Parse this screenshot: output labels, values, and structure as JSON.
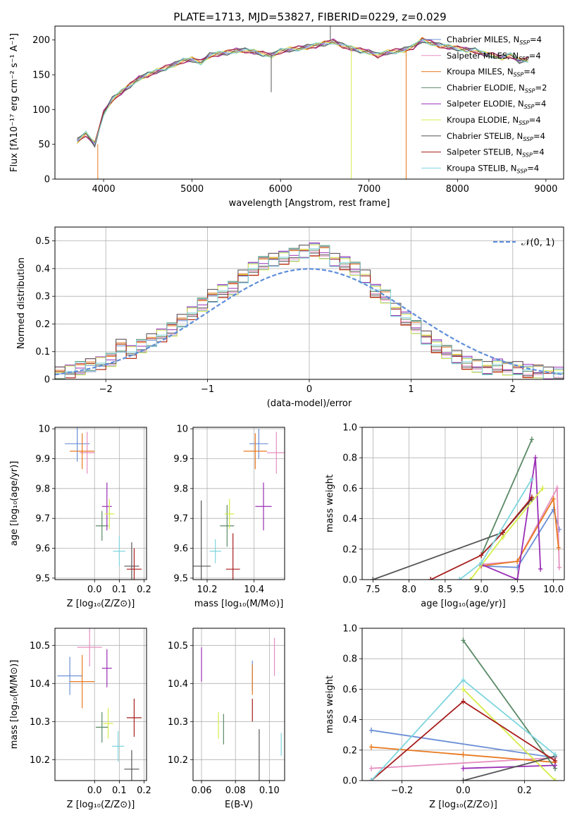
{
  "figure_title": "PLATE=1713, MJD=53827, FIBERID=0229, z=0.029",
  "colors": {
    "Chabrier MILES": "#6b8fd6",
    "Salpeter MILES": "#e68fc0",
    "Kroupa MILES": "#e8791f",
    "Chabrier ELODIE": "#5a8a66",
    "Salpeter ELODIE": "#9a2fb5",
    "Kroupa ELODIE": "#d6ec48",
    "Chabrier STELIB": "#555555",
    "Salpeter STELIB": "#a61d1d",
    "Kroupa STELIB": "#7fd6de",
    "normal_curve": "#5f8ed9"
  },
  "legend_spectrum": [
    {
      "model": "Chabrier MILES",
      "n": "4"
    },
    {
      "model": "Salpeter MILES",
      "n": "4"
    },
    {
      "model": "Kroupa MILES",
      "n": "4"
    },
    {
      "model": "Chabrier ELODIE",
      "n": "2"
    },
    {
      "model": "Salpeter ELODIE",
      "n": "4"
    },
    {
      "model": "Kroupa ELODIE",
      "n": "4"
    },
    {
      "model": "Chabrier STELIB",
      "n": "4"
    },
    {
      "model": "Salpeter STELIB",
      "n": "4"
    },
    {
      "model": "Kroupa STELIB",
      "n": "4"
    }
  ],
  "legend_label_prefix": "N",
  "legend_label_sub": "SSP",
  "chart_data": [
    {
      "id": "spectrum",
      "type": "line",
      "xlabel": "wavelength [Angstrom, rest frame]",
      "ylabel": "Flux [fλ10⁻¹⁷ erg cm⁻² s⁻¹ A⁻¹]",
      "xlim": [
        3450,
        9200
      ],
      "ylim": [
        0,
        220
      ],
      "xticks": [
        4000,
        5000,
        6000,
        7000,
        8000,
        9000
      ],
      "yticks": [
        0,
        50,
        100,
        150,
        200
      ],
      "grid": false,
      "x": [
        3700,
        3800,
        3900,
        4000,
        4100,
        4200,
        4300,
        4400,
        4500,
        4600,
        4700,
        4800,
        4900,
        5000,
        5100,
        5200,
        5300,
        5400,
        5500,
        5600,
        5700,
        5800,
        5900,
        6000,
        6100,
        6200,
        6300,
        6400,
        6500,
        6600,
        6700,
        6800,
        6900,
        7000,
        7100,
        7200,
        7300,
        7400,
        7500,
        7600,
        7700,
        7800,
        7900,
        8000,
        8100,
        8200,
        8300,
        8400,
        8500,
        8600,
        8700,
        8800
      ],
      "y": [
        55,
        65,
        50,
        95,
        115,
        125,
        135,
        145,
        150,
        155,
        160,
        165,
        170,
        172,
        168,
        178,
        180,
        182,
        185,
        185,
        183,
        180,
        178,
        184,
        186,
        188,
        190,
        192,
        195,
        198,
        192,
        188,
        185,
        183,
        178,
        182,
        184,
        186,
        190,
        200,
        196,
        192,
        190,
        188,
        186,
        185,
        180,
        178,
        175,
        178,
        170,
        172
      ],
      "spectrum_features": [
        {
          "x": 3934,
          "y": 0,
          "series": "Kroupa MILES"
        },
        {
          "x": 5895,
          "y": 125,
          "series": "Chabrier STELIB"
        },
        {
          "x": 6563,
          "y": 220,
          "series": "Chabrier STELIB"
        },
        {
          "x": 6800,
          "y": 0,
          "series": "Kroupa ELODIE"
        },
        {
          "x": 7420,
          "y": 0,
          "series": "Kroupa MILES"
        }
      ]
    },
    {
      "id": "residuals",
      "type": "histogram",
      "xlabel": "(data-model)/error",
      "ylabel": "Normed distribution",
      "xlim": [
        -2.5,
        2.5
      ],
      "ylim": [
        0,
        0.55
      ],
      "xticks": [
        -2,
        -1,
        0,
        1,
        2
      ],
      "yticks": [
        0,
        0.1,
        0.2,
        0.3,
        0.4,
        0.5
      ],
      "grid": true,
      "bin_edges": [
        -2.5,
        -2.4,
        -2.3,
        -2.2,
        -2.1,
        -2.0,
        -1.9,
        -1.8,
        -1.7,
        -1.6,
        -1.5,
        -1.4,
        -1.3,
        -1.2,
        -1.1,
        -1.0,
        -0.9,
        -0.8,
        -0.7,
        -0.6,
        -0.5,
        -0.4,
        -0.3,
        -0.2,
        -0.1,
        0.0,
        0.1,
        0.2,
        0.3,
        0.4,
        0.5,
        0.6,
        0.7,
        0.8,
        0.9,
        1.0,
        1.1,
        1.2,
        1.3,
        1.4,
        1.5,
        1.6,
        1.7,
        1.8,
        1.9,
        2.0,
        2.1,
        2.2,
        2.3,
        2.4,
        2.5
      ],
      "heights": [
        0.02,
        0.03,
        0.04,
        0.05,
        0.06,
        0.07,
        0.12,
        0.1,
        0.12,
        0.14,
        0.16,
        0.18,
        0.21,
        0.24,
        0.27,
        0.3,
        0.32,
        0.33,
        0.37,
        0.4,
        0.42,
        0.43,
        0.44,
        0.45,
        0.46,
        0.47,
        0.46,
        0.43,
        0.42,
        0.4,
        0.37,
        0.32,
        0.3,
        0.25,
        0.22,
        0.19,
        0.15,
        0.12,
        0.1,
        0.08,
        0.06,
        0.05,
        0.04,
        0.05,
        0.04,
        0.04,
        0.03,
        0.03,
        0.02,
        0.02
      ],
      "legend": "𝒩(0, 1)",
      "normal_curve": {
        "mu": 0,
        "sigma": 1,
        "style": "dashed"
      }
    },
    {
      "id": "age_vs_Z",
      "type": "errorbar",
      "xlabel": "Z [log₁₀(Z/Z⊙)]",
      "ylabel": "age  [log₁₀(age/yr)]",
      "xlim": [
        -0.16,
        0.21
      ],
      "ylim": [
        9.495,
        10.005
      ],
      "xticks": [
        0.0,
        0.1,
        0.2
      ],
      "xticklabels": [
        "0.0",
        "0.1",
        "0.2"
      ],
      "yticks": [
        9.5,
        9.6,
        9.7,
        9.8,
        9.9,
        10.0
      ],
      "grid": true,
      "points": [
        {
          "series": "Chabrier MILES",
          "x": -0.07,
          "y": 9.95,
          "xerr": 0.05,
          "yerr": 0.06
        },
        {
          "series": "Salpeter MILES",
          "x": -0.03,
          "y": 9.92,
          "xerr": 0.03,
          "yerr": 0.07
        },
        {
          "series": "Kroupa MILES",
          "x": -0.05,
          "y": 9.925,
          "xerr": 0.05,
          "yerr": 0.06
        },
        {
          "series": "Chabrier ELODIE",
          "x": 0.03,
          "y": 9.675,
          "xerr": 0.025,
          "yerr": 0.05
        },
        {
          "series": "Salpeter ELODIE",
          "x": 0.05,
          "y": 9.74,
          "xerr": 0.02,
          "yerr": 0.08
        },
        {
          "series": "Kroupa ELODIE",
          "x": 0.06,
          "y": 9.715,
          "xerr": 0.02,
          "yerr": 0.05
        },
        {
          "series": "Chabrier STELIB",
          "x": 0.15,
          "y": 9.54,
          "xerr": 0.03,
          "yerr": 0.08
        },
        {
          "series": "Salpeter STELIB",
          "x": 0.16,
          "y": 9.53,
          "xerr": 0.03,
          "yerr": 0.07
        },
        {
          "series": "Kroupa STELIB",
          "x": 0.1,
          "y": 9.59,
          "xerr": 0.025,
          "yerr": 0.05
        }
      ]
    },
    {
      "id": "age_vs_mass",
      "type": "errorbar",
      "xlabel": "mass [log₁₀(M/M⊙)]",
      "ylabel": "",
      "xlim": [
        10.14,
        10.53
      ],
      "ylim": [
        9.495,
        10.005
      ],
      "xticks": [
        10.2,
        10.4
      ],
      "xticklabels": [
        "10.2",
        "10.4"
      ],
      "yticks": [
        9.5,
        9.6,
        9.7,
        9.8,
        9.9,
        10.0
      ],
      "grid": true,
      "points": [
        {
          "series": "Chabrier MILES",
          "x": 10.42,
          "y": 9.95,
          "xerr": 0.04,
          "yerr": 0.05
        },
        {
          "series": "Salpeter MILES",
          "x": 10.495,
          "y": 9.92,
          "xerr": 0.04,
          "yerr": 0.07
        },
        {
          "series": "Kroupa MILES",
          "x": 10.405,
          "y": 9.925,
          "xerr": 0.05,
          "yerr": 0.06
        },
        {
          "series": "Chabrier ELODIE",
          "x": 10.285,
          "y": 9.675,
          "xerr": 0.03,
          "yerr": 0.07
        },
        {
          "series": "Salpeter ELODIE",
          "x": 10.44,
          "y": 9.74,
          "xerr": 0.035,
          "yerr": 0.08
        },
        {
          "series": "Kroupa ELODIE",
          "x": 10.295,
          "y": 9.715,
          "xerr": 0.02,
          "yerr": 0.05
        },
        {
          "series": "Chabrier STELIB",
          "x": 10.175,
          "y": 9.54,
          "xerr": 0.04,
          "yerr": 0.22
        },
        {
          "series": "Salpeter STELIB",
          "x": 10.31,
          "y": 9.53,
          "xerr": 0.03,
          "yerr": 0.12
        },
        {
          "series": "Kroupa STELIB",
          "x": 10.235,
          "y": 9.59,
          "xerr": 0.025,
          "yerr": 0.04
        }
      ]
    },
    {
      "id": "weight_vs_age",
      "type": "line",
      "xlabel": "age  [log₁₀(age/yr)]",
      "ylabel": "mass weight",
      "xlim": [
        7.35,
        10.15
      ],
      "ylim": [
        0,
        1.0
      ],
      "xticks": [
        7.5,
        8.0,
        8.5,
        9.0,
        9.5,
        10.0
      ],
      "xticklabels": [
        "7.5",
        "8.0",
        "8.5",
        "9.0",
        "9.5",
        "10.0"
      ],
      "yticks": [
        0,
        0.2,
        0.4,
        0.6,
        0.8,
        1.0
      ],
      "yticklabels": [
        "0.0",
        "0.2",
        "0.4",
        "0.6",
        "0.8",
        "1.0"
      ],
      "grid": true,
      "series": [
        {
          "color_key": "Chabrier MILES",
          "points": [
            [
              9.0,
              0.09
            ],
            [
              9.5,
              0.08
            ],
            [
              10.0,
              0.46
            ],
            [
              10.08,
              0.33
            ]
          ]
        },
        {
          "color_key": "Salpeter MILES",
          "points": [
            [
              9.0,
              0.1
            ],
            [
              9.5,
              0.12
            ],
            [
              10.05,
              0.6
            ],
            [
              10.08,
              0.08
            ]
          ]
        },
        {
          "color_key": "Kroupa MILES",
          "points": [
            [
              9.0,
              0.09
            ],
            [
              9.5,
              0.12
            ],
            [
              10.0,
              0.53
            ],
            [
              10.07,
              0.21
            ]
          ]
        },
        {
          "color_key": "Chabrier ELODIE",
          "points": [
            [
              9.0,
              0.16
            ],
            [
              9.7,
              0.92
            ]
          ]
        },
        {
          "color_key": "Salpeter ELODIE",
          "points": [
            [
              9.0,
              0.1
            ],
            [
              9.5,
              0.0
            ],
            [
              9.75,
              0.8
            ],
            [
              9.82,
              0.07
            ]
          ]
        },
        {
          "color_key": "Kroupa ELODIE",
          "points": [
            [
              8.85,
              0.0
            ],
            [
              9.3,
              0.28
            ],
            [
              9.85,
              0.6
            ]
          ]
        },
        {
          "color_key": "Chabrier STELIB",
          "points": [
            [
              7.5,
              0.0
            ],
            [
              9.3,
              0.31
            ],
            [
              9.7,
              0.53
            ]
          ]
        },
        {
          "color_key": "Salpeter STELIB",
          "points": [
            [
              8.3,
              0.0
            ],
            [
              9.0,
              0.16
            ],
            [
              9.3,
              0.31
            ],
            [
              9.7,
              0.54
            ]
          ]
        },
        {
          "color_key": "Kroupa STELIB",
          "points": [
            [
              8.7,
              0.0
            ],
            [
              9.0,
              0.11
            ],
            [
              9.7,
              0.66
            ]
          ]
        }
      ]
    },
    {
      "id": "mass_vs_Z",
      "type": "errorbar",
      "xlabel": "Z [log₁₀(Z/Z⊙)]",
      "ylabel": "mass [log₁₀(M/M⊙)]",
      "xlim": [
        -0.16,
        0.21
      ],
      "ylim": [
        10.145,
        10.545
      ],
      "xticks": [
        0.0,
        0.1,
        0.2
      ],
      "xticklabels": [
        "0.0",
        "0.1",
        "0.2"
      ],
      "yticks": [
        10.2,
        10.3,
        10.4,
        10.5
      ],
      "yticklabels": [
        "10.2",
        "10.3",
        "10.4",
        "10.5"
      ],
      "grid": true,
      "points": [
        {
          "series": "Chabrier MILES",
          "x": -0.1,
          "y": 10.42,
          "xerr": 0.05,
          "yerr": 0.05
        },
        {
          "series": "Salpeter MILES",
          "x": -0.02,
          "y": 10.495,
          "xerr": 0.05,
          "yerr": 0.05
        },
        {
          "series": "Kroupa MILES",
          "x": -0.05,
          "y": 10.405,
          "xerr": 0.05,
          "yerr": 0.07
        },
        {
          "series": "Chabrier ELODIE",
          "x": 0.03,
          "y": 10.285,
          "xerr": 0.025,
          "yerr": 0.04
        },
        {
          "series": "Salpeter ELODIE",
          "x": 0.05,
          "y": 10.44,
          "xerr": 0.02,
          "yerr": 0.05
        },
        {
          "series": "Kroupa ELODIE",
          "x": 0.055,
          "y": 10.295,
          "xerr": 0.02,
          "yerr": 0.04
        },
        {
          "series": "Chabrier STELIB",
          "x": 0.15,
          "y": 10.175,
          "xerr": 0.03,
          "yerr": 0.05
        },
        {
          "series": "Salpeter STELIB",
          "x": 0.16,
          "y": 10.31,
          "xerr": 0.03,
          "yerr": 0.05
        },
        {
          "series": "Kroupa STELIB",
          "x": 0.095,
          "y": 10.235,
          "xerr": 0.025,
          "yerr": 0.04
        }
      ]
    },
    {
      "id": "mass_vs_ebv",
      "type": "errorbar",
      "xlabel": "E(B-V)",
      "ylabel": "",
      "xlim": [
        0.055,
        0.109
      ],
      "ylim": [
        10.145,
        10.545
      ],
      "xticks": [
        0.06,
        0.08,
        0.1
      ],
      "xticklabels": [
        "0.06",
        "0.08",
        "0.10"
      ],
      "yticks": [
        10.2,
        10.3,
        10.4,
        10.5
      ],
      "yticklabels": [
        "10.2",
        "10.3",
        "10.4",
        "10.5"
      ],
      "grid": true,
      "points": [
        {
          "series": "Salpeter ELODIE",
          "x": 0.06,
          "y": 10.45,
          "xerr": 0,
          "yerr": 0.045
        },
        {
          "series": "Kroupa ELODIE",
          "x": 0.07,
          "y": 10.29,
          "xerr": 0,
          "yerr": 0.035
        },
        {
          "series": "Chabrier ELODIE",
          "x": 0.073,
          "y": 10.28,
          "xerr": 0,
          "yerr": 0.04
        },
        {
          "series": "Chabrier MILES",
          "x": 0.09,
          "y": 10.42,
          "xerr": 0,
          "yerr": 0.04
        },
        {
          "series": "Kroupa MILES",
          "x": 0.09,
          "y": 10.41,
          "xerr": 0,
          "yerr": 0.04
        },
        {
          "series": "Salpeter STELIB",
          "x": 0.09,
          "y": 10.33,
          "xerr": 0,
          "yerr": 0.03
        },
        {
          "series": "Chabrier STELIB",
          "x": 0.094,
          "y": 10.21,
          "xerr": 0,
          "yerr": 0.07
        },
        {
          "series": "Salpeter MILES",
          "x": 0.103,
          "y": 10.47,
          "xerr": 0,
          "yerr": 0.05
        },
        {
          "series": "Kroupa STELIB",
          "x": 0.107,
          "y": 10.24,
          "xerr": 0,
          "yerr": 0.03
        }
      ]
    },
    {
      "id": "weight_vs_Z",
      "type": "line",
      "xlabel": "Z [log₁₀(Z/Z⊙)]",
      "ylabel": "mass weight",
      "xlim": [
        -0.33,
        0.33
      ],
      "ylim": [
        0,
        1.0
      ],
      "xticks": [
        -0.2,
        0.0,
        0.2
      ],
      "xticklabels": [
        "−0.2",
        "0.0",
        "0.2"
      ],
      "yticks": [
        0,
        0.2,
        0.4,
        0.6,
        0.8,
        1.0
      ],
      "yticklabels": [
        "0.0",
        "0.2",
        "0.4",
        "0.6",
        "0.8",
        "1.0"
      ],
      "grid": true,
      "series": [
        {
          "color_key": "Chabrier MILES",
          "points": [
            [
              -0.3,
              0.33
            ],
            [
              0.3,
              0.15
            ]
          ]
        },
        {
          "color_key": "Salpeter MILES",
          "points": [
            [
              -0.3,
              0.08
            ],
            [
              0.3,
              0.15
            ]
          ]
        },
        {
          "color_key": "Kroupa MILES",
          "points": [
            [
              -0.3,
              0.22
            ],
            [
              0.0,
              0.17
            ],
            [
              0.3,
              0.12
            ]
          ]
        },
        {
          "color_key": "Chabrier ELODIE",
          "points": [
            [
              0.0,
              0.92
            ],
            [
              0.3,
              0.08
            ]
          ]
        },
        {
          "color_key": "Salpeter ELODIE",
          "points": [
            [
              0.0,
              0.08
            ],
            [
              0.3,
              0.1
            ]
          ]
        },
        {
          "color_key": "Kroupa ELODIE",
          "points": [
            [
              0.0,
              0.6
            ],
            [
              0.3,
              0.0
            ]
          ]
        },
        {
          "color_key": "Chabrier STELIB",
          "points": [
            [
              0.0,
              0.0
            ],
            [
              0.3,
              0.16
            ]
          ]
        },
        {
          "color_key": "Salpeter STELIB",
          "points": [
            [
              -0.3,
              0.0
            ],
            [
              0.0,
              0.52
            ],
            [
              0.3,
              0.13
            ]
          ]
        },
        {
          "color_key": "Kroupa STELIB",
          "points": [
            [
              -0.3,
              0.0
            ],
            [
              0.0,
              0.66
            ],
            [
              0.3,
              0.17
            ]
          ]
        }
      ]
    }
  ]
}
